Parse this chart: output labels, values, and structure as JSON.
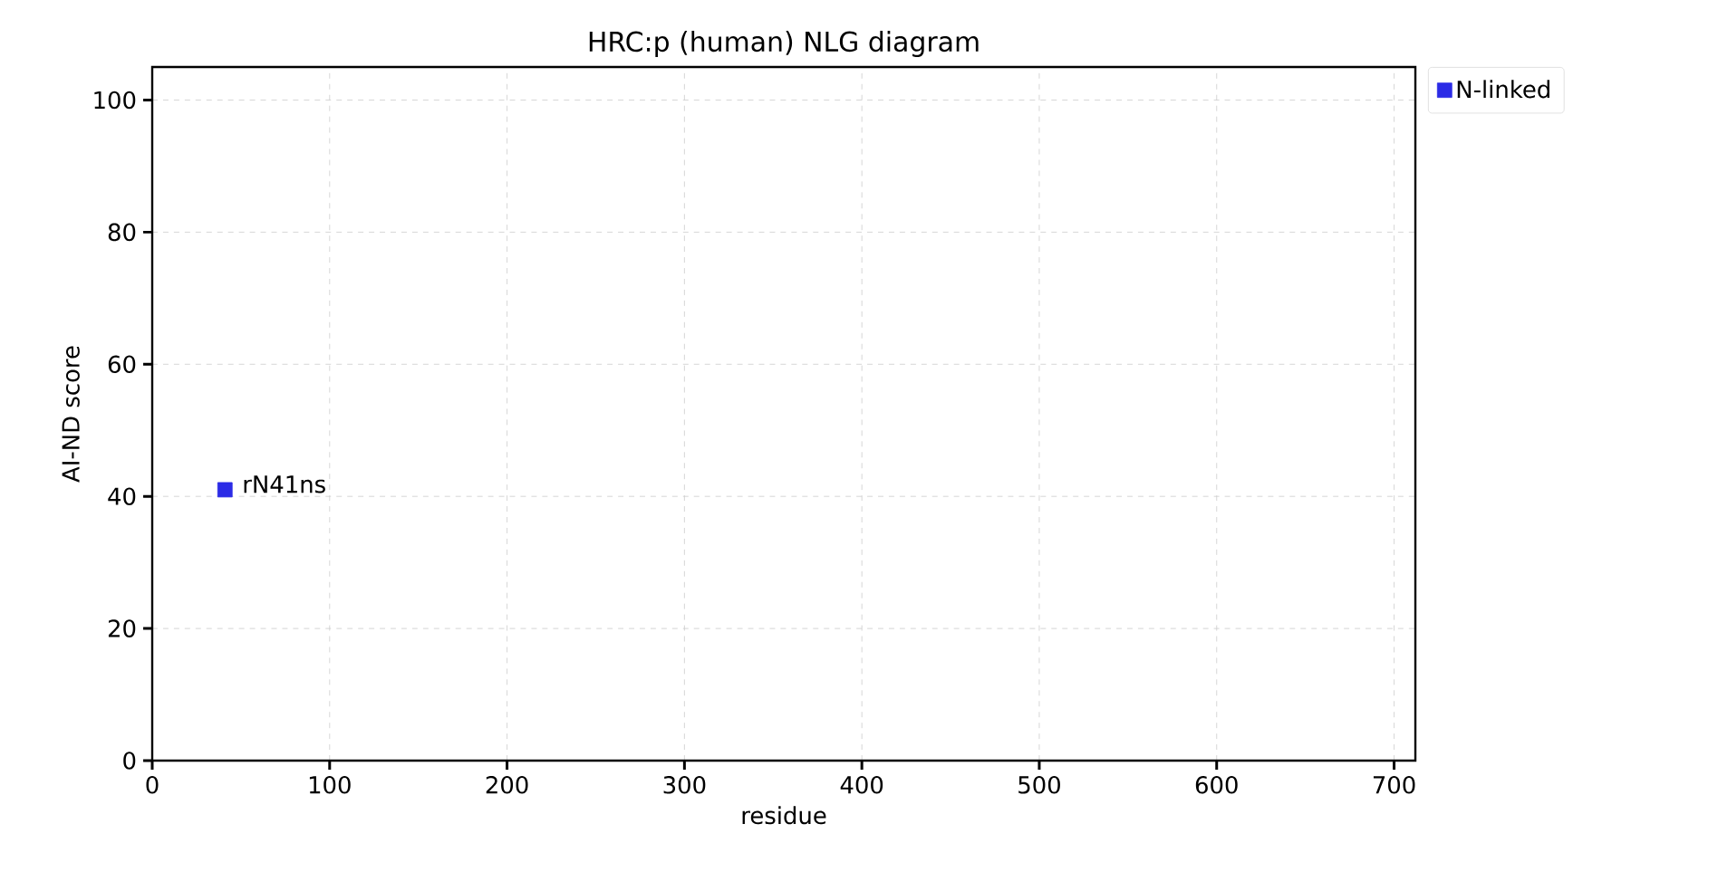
{
  "chart_data": {
    "type": "scatter",
    "title": "HRC:p (human) NLG diagram",
    "xlabel": "residue",
    "ylabel": "AI-ND score",
    "x": [
      41
    ],
    "series": [
      {
        "name": "N-linked",
        "color": "#2b2be6",
        "values": [
          41
        ]
      }
    ],
    "annotations": [
      {
        "text": "rN41ns",
        "x": 41,
        "y": 41
      }
    ],
    "xlim": [
      0,
      712
    ],
    "ylim": [
      0,
      105
    ],
    "xticks": [
      0,
      100,
      200,
      300,
      400,
      500,
      600,
      700
    ],
    "yticks": [
      0,
      20,
      40,
      60,
      80,
      100
    ],
    "grid": true,
    "legend": "top right",
    "marker": "square"
  }
}
